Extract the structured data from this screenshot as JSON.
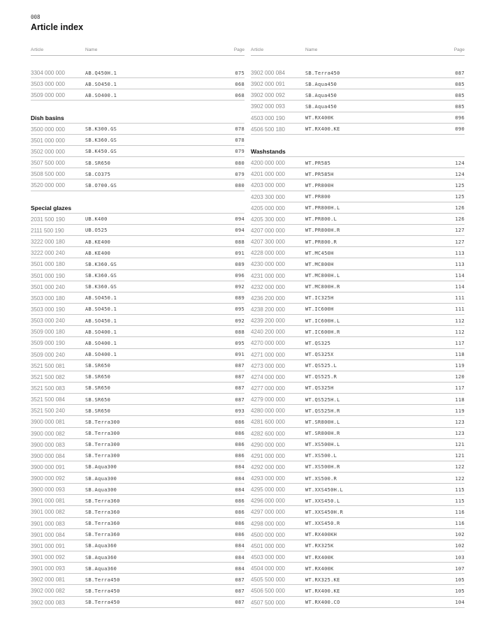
{
  "page_number": "008",
  "title": "Article index",
  "columns_header": {
    "article": "Article",
    "name": "Name",
    "page": "Page"
  },
  "left_column": [
    {
      "article": "3304 000 000",
      "name": "AB.Q450H.1",
      "page": "075"
    },
    {
      "article": "3503 000 000",
      "name": "AB.SO450.1",
      "page": "068"
    },
    {
      "article": "3509 000 000",
      "name": "AB.SO400.1",
      "page": "068"
    },
    {
      "spacer": true
    },
    {
      "heading": "Dish basins"
    },
    {
      "article": "3500 000 000",
      "name": "SB.K300.GS",
      "page": "078"
    },
    {
      "article": "3501 000 000",
      "name": "SB.K360.GS",
      "page": "078"
    },
    {
      "article": "3502 000 000",
      "name": "SB.K450.GS",
      "page": "079"
    },
    {
      "article": "3507 500 000",
      "name": "SB.SR650",
      "page": "080"
    },
    {
      "article": "3508 500 000",
      "name": "SB.CO375",
      "page": "079"
    },
    {
      "article": "3520 000 000",
      "name": "SB.O700.GS",
      "page": "080"
    },
    {
      "spacer": true
    },
    {
      "heading": "Special glazes"
    },
    {
      "article": "2031 500 190",
      "name": "UB.K400",
      "page": "094"
    },
    {
      "article": "2111 500 190",
      "name": "UB.O525",
      "page": "094"
    },
    {
      "article": "3222 000 180",
      "name": "AB.KE400",
      "page": "088"
    },
    {
      "article": "3222 000 240",
      "name": "AB.KE400",
      "page": "091"
    },
    {
      "article": "3501 000 180",
      "name": "SB.K360.GS",
      "page": "089"
    },
    {
      "article": "3501 000 190",
      "name": "SB.K360.GS",
      "page": "096"
    },
    {
      "article": "3501 000 240",
      "name": "SB.K360.GS",
      "page": "092"
    },
    {
      "article": "3503 000 180",
      "name": "AB.SO450.1",
      "page": "089"
    },
    {
      "article": "3503 000 190",
      "name": "AB.SO450.1",
      "page": "095"
    },
    {
      "article": "3503 000 240",
      "name": "AB.SO450.1",
      "page": "092"
    },
    {
      "article": "3509 000 180",
      "name": "AB.SO400.1",
      "page": "088"
    },
    {
      "article": "3509 000 190",
      "name": "AB.SO400.1",
      "page": "095"
    },
    {
      "article": "3509 000 240",
      "name": "AB.SO400.1",
      "page": "091"
    },
    {
      "article": "3521 500 081",
      "name": "SB.SR650",
      "page": "087"
    },
    {
      "article": "3521 500 082",
      "name": "SB.SR650",
      "page": "087"
    },
    {
      "article": "3521 500 083",
      "name": "SB.SR650",
      "page": "087"
    },
    {
      "article": "3521 500 084",
      "name": "SB.SR650",
      "page": "087"
    },
    {
      "article": "3521 500 240",
      "name": "SB.SR650",
      "page": "093"
    },
    {
      "article": "3900 000 081",
      "name": "SB.Terra300",
      "page": "086"
    },
    {
      "article": "3900 000 082",
      "name": "SB.Terra300",
      "page": "086"
    },
    {
      "article": "3900 000 083",
      "name": "SB.Terra300",
      "page": "086"
    },
    {
      "article": "3900 000 084",
      "name": "SB.Terra300",
      "page": "086"
    },
    {
      "article": "3900 000 091",
      "name": "SB.Aqua300",
      "page": "084"
    },
    {
      "article": "3900 000 092",
      "name": "SB.Aqua300",
      "page": "084"
    },
    {
      "article": "3900 000 093",
      "name": "SB.Aqua300",
      "page": "084"
    },
    {
      "article": "3901 000 081",
      "name": "SB.Terra360",
      "page": "086"
    },
    {
      "article": "3901 000 082",
      "name": "SB.Terra360",
      "page": "086"
    },
    {
      "article": "3901 000 083",
      "name": "SB.Terra360",
      "page": "086"
    },
    {
      "article": "3901 000 084",
      "name": "SB.Terra360",
      "page": "086"
    },
    {
      "article": "3901 000 091",
      "name": "SB.Aqua360",
      "page": "084"
    },
    {
      "article": "3901 000 092",
      "name": "SB.Aqua360",
      "page": "084"
    },
    {
      "article": "3901 000 093",
      "name": "SB.Aqua360",
      "page": "084"
    },
    {
      "article": "3902 000 081",
      "name": "SB.Terra450",
      "page": "087"
    },
    {
      "article": "3902 000 082",
      "name": "SB.Terra450",
      "page": "087"
    },
    {
      "article": "3902 000 083",
      "name": "SB.Terra450",
      "page": "087"
    }
  ],
  "right_column": [
    {
      "article": "3902 000 084",
      "name": "SB.Terra450",
      "page": "087"
    },
    {
      "article": "3902 000 091",
      "name": "SB.Aqua450",
      "page": "085"
    },
    {
      "article": "3902 000 092",
      "name": "SB.Aqua450",
      "page": "085"
    },
    {
      "article": "3902 000 093",
      "name": "SB.Aqua450",
      "page": "085"
    },
    {
      "article": "4503 000 190",
      "name": "WT.RX400K",
      "page": "096"
    },
    {
      "article": "4506 500 180",
      "name": "WT.RX400.KE",
      "page": "090"
    },
    {
      "spacer": true
    },
    {
      "heading": "Washstands"
    },
    {
      "article": "4200 000 000",
      "name": "WT.PR585",
      "page": "124"
    },
    {
      "article": "4201 000 000",
      "name": "WT.PR585H",
      "page": "124"
    },
    {
      "article": "4203 000 000",
      "name": "WT.PR800H",
      "page": "125"
    },
    {
      "article": "4203 300 000",
      "name": "WT.PR800",
      "page": "125"
    },
    {
      "article": "4205 000 000",
      "name": "WT.PR800H.L",
      "page": "126"
    },
    {
      "article": "4205 300 000",
      "name": "WT.PR800.L",
      "page": "126"
    },
    {
      "article": "4207 000 000",
      "name": "WT.PR800H.R",
      "page": "127"
    },
    {
      "article": "4207 300 000",
      "name": "WT.PR800.R",
      "page": "127"
    },
    {
      "article": "4228 000 000",
      "name": "WT.MC450H",
      "page": "113"
    },
    {
      "article": "4230 000 000",
      "name": "WT.MC800H",
      "page": "113"
    },
    {
      "article": "4231 000 000",
      "name": "WT.MC800H.L",
      "page": "114"
    },
    {
      "article": "4232 000 000",
      "name": "WT.MC800H.R",
      "page": "114"
    },
    {
      "article": "4236 200 000",
      "name": "WT.IC325H",
      "page": "111"
    },
    {
      "article": "4238 200 000",
      "name": "WT.IC600H",
      "page": "111"
    },
    {
      "article": "4239 200 000",
      "name": "WT.IC600H.L",
      "page": "112"
    },
    {
      "article": "4240 200 000",
      "name": "WT.IC600H.R",
      "page": "112"
    },
    {
      "article": "4270 000 000",
      "name": "WT.QS325",
      "page": "117"
    },
    {
      "article": "4271 000 000",
      "name": "WT.QS325X",
      "page": "118"
    },
    {
      "article": "4273 000 000",
      "name": "WT.QS525.L",
      "page": "119"
    },
    {
      "article": "4274 000 000",
      "name": "WT.QS525.R",
      "page": "120"
    },
    {
      "article": "4277 000 000",
      "name": "WT.QS325H",
      "page": "117"
    },
    {
      "article": "4279 000 000",
      "name": "WT.QS525H.L",
      "page": "118"
    },
    {
      "article": "4280 000 000",
      "name": "WT.QS525H.R",
      "page": "119"
    },
    {
      "article": "4281 600 000",
      "name": "WT.SR800H.L",
      "page": "123"
    },
    {
      "article": "4282 600 000",
      "name": "WT.SR800H.R",
      "page": "123"
    },
    {
      "article": "4290 000 000",
      "name": "WT.XS500H.L",
      "page": "121"
    },
    {
      "article": "4291 000 000",
      "name": "WT.XS500.L",
      "page": "121"
    },
    {
      "article": "4292 000 000",
      "name": "WT.XS500H.R",
      "page": "122"
    },
    {
      "article": "4293 000 000",
      "name": "WT.XS500.R",
      "page": "122"
    },
    {
      "article": "4295 000 000",
      "name": "WT.XXS450H.L",
      "page": "115"
    },
    {
      "article": "4296 000 000",
      "name": "WT.XXS450.L",
      "page": "115"
    },
    {
      "article": "4297 000 000",
      "name": "WT.XXS450H.R",
      "page": "116"
    },
    {
      "article": "4298 000 000",
      "name": "WT.XXS450.R",
      "page": "116"
    },
    {
      "article": "4500 000 000",
      "name": "WT.RX400KH",
      "page": "102"
    },
    {
      "article": "4501 000 000",
      "name": "WT.RX325K",
      "page": "102"
    },
    {
      "article": "4503 000 000",
      "name": "WT.RX400K",
      "page": "103"
    },
    {
      "article": "4504 000 000",
      "name": "WT.RX400K",
      "page": "107"
    },
    {
      "article": "4505 500 000",
      "name": "WT.RX325.KE",
      "page": "105"
    },
    {
      "article": "4506 500 000",
      "name": "WT.RX400.KE",
      "page": "105"
    },
    {
      "article": "4507 500 000",
      "name": "WT.RX400.CO",
      "page": "104"
    }
  ]
}
